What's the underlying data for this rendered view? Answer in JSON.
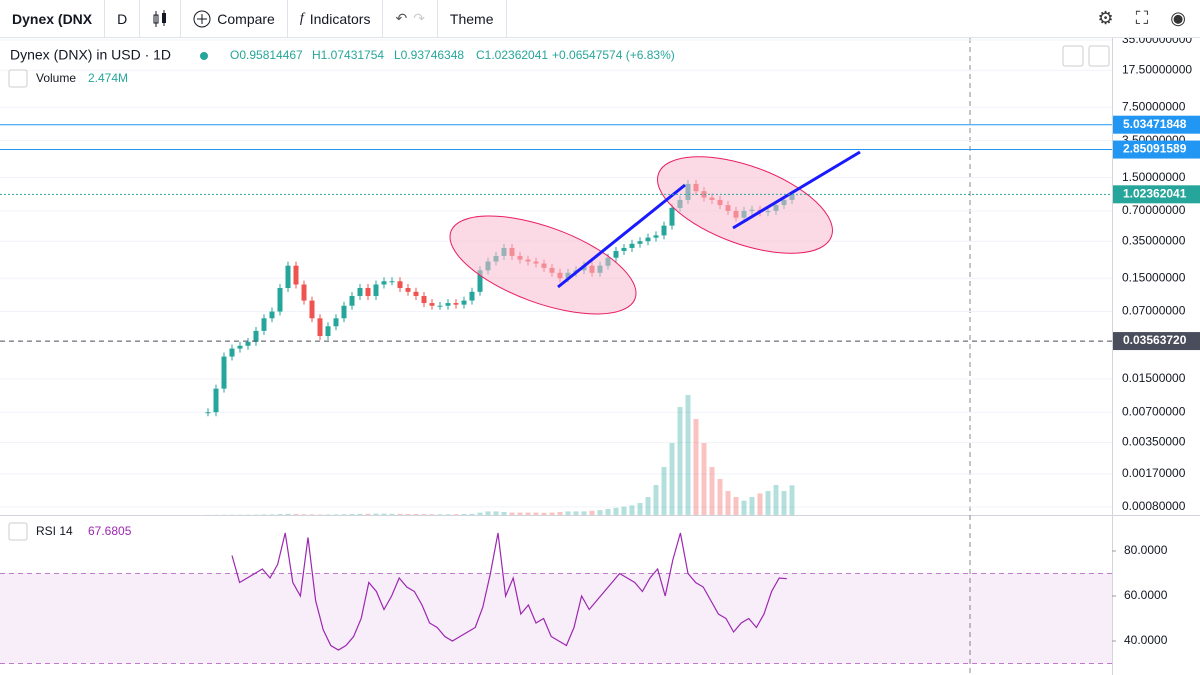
{
  "toolbar": {
    "symbol": "Dynex (DNX",
    "interval": "D",
    "compare": "Compare",
    "indicators": "Indicators",
    "theme": "Theme"
  },
  "legend": {
    "title": "Dynex (DNX) in USD · 1D",
    "open": "O0.95814467",
    "high": "H1.07431754",
    "low": "L0.93746348",
    "close": "C1.02362041",
    "change": "+0.06547574 (+6.83%)"
  },
  "volume_legend": {
    "name": "Volume",
    "value": "2.474M"
  },
  "chart": {
    "type": "candlestick",
    "log_scale": true,
    "grid": true,
    "ylim": [
      0.000666,
      36.6
    ],
    "yticks": [
      {
        "value": 35,
        "label": "35.00000000"
      },
      {
        "value": 17.5,
        "label": "17.50000000"
      },
      {
        "value": 7.5,
        "label": "7.50000000"
      },
      {
        "value": 3.5,
        "label": "3.50000000"
      },
      {
        "value": 1.5,
        "label": "1.50000000"
      },
      {
        "value": 0.7,
        "label": "0.70000000"
      },
      {
        "value": 0.35,
        "label": "0.35000000"
      },
      {
        "value": 0.15,
        "label": "0.15000000"
      },
      {
        "value": 0.07,
        "label": "0.07000000"
      },
      {
        "value": 0.015,
        "label": "0.01500000"
      },
      {
        "value": 0.007,
        "label": "0.00700000"
      },
      {
        "value": 0.0035,
        "label": "0.00350000"
      },
      {
        "value": 0.0017,
        "label": "0.00170000"
      },
      {
        "value": 0.0008,
        "label": "0.00080000"
      }
    ],
    "price_tags": [
      {
        "value": 5.03471848,
        "color": "#2196f3",
        "style": "solid"
      },
      {
        "value": 2.85091589,
        "color": "#2196f3",
        "style": "solid"
      },
      {
        "value": 1.02362041,
        "color": "#26a69a",
        "style": "dotted"
      },
      {
        "value": 0.0356372,
        "label": "0.03563720",
        "color": "#4a4e5c",
        "style": "dashed"
      }
    ],
    "up_color": "#26a69a",
    "down_color": "#ef5350",
    "close": [
      0.007,
      0.012,
      0.025,
      0.03,
      0.032,
      0.035,
      0.045,
      0.06,
      0.07,
      0.12,
      0.2,
      0.13,
      0.09,
      0.06,
      0.04,
      0.05,
      0.06,
      0.08,
      0.1,
      0.12,
      0.1,
      0.13,
      0.14,
      0.14,
      0.12,
      0.11,
      0.1,
      0.085,
      0.08,
      0.08,
      0.085,
      0.082,
      0.09,
      0.11,
      0.18,
      0.22,
      0.25,
      0.3,
      0.25,
      0.23,
      0.22,
      0.21,
      0.19,
      0.17,
      0.15,
      0.17,
      0.18,
      0.2,
      0.17,
      0.2,
      0.24,
      0.28,
      0.3,
      0.33,
      0.35,
      0.38,
      0.4,
      0.5,
      0.75,
      0.9,
      1.3,
      1.1,
      0.95,
      0.9,
      0.8,
      0.7,
      0.6,
      0.7,
      0.72,
      0.68,
      0.7,
      0.8,
      0.9,
      1.02362041
    ],
    "volume": [
      0.01,
      0.01,
      0.02,
      0.02,
      0.02,
      0.03,
      0.03,
      0.04,
      0.05,
      0.08,
      0.1,
      0.08,
      0.06,
      0.05,
      0.04,
      0.04,
      0.05,
      0.06,
      0.08,
      0.1,
      0.1,
      0.12,
      0.12,
      0.1,
      0.1,
      0.08,
      0.08,
      0.07,
      0.07,
      0.06,
      0.06,
      0.07,
      0.08,
      0.1,
      0.2,
      0.3,
      0.3,
      0.25,
      0.2,
      0.2,
      0.2,
      0.2,
      0.18,
      0.2,
      0.25,
      0.3,
      0.3,
      0.3,
      0.35,
      0.4,
      0.5,
      0.6,
      0.7,
      0.8,
      1.0,
      1.5,
      2.5,
      4.0,
      6.0,
      9.0,
      10.0,
      8.0,
      6.0,
      4.0,
      3.0,
      2.0,
      1.5,
      1.2,
      1.5,
      1.8,
      2.0,
      2.5,
      2.0,
      2.474
    ]
  },
  "rsi": {
    "name": "RSI 14",
    "color": "#9c27b0",
    "ylim": [
      24.9,
      95.1
    ],
    "band": [
      30,
      70
    ],
    "yticks": [
      {
        "value": 80,
        "label": "80.0000"
      },
      {
        "value": 60,
        "label": "60.0000"
      },
      {
        "value": 40,
        "label": "40.0000"
      }
    ],
    "values": [
      78,
      66,
      68,
      70,
      72,
      68,
      74,
      88,
      66,
      60,
      86,
      58,
      45,
      38,
      36,
      38,
      42,
      50,
      66,
      62,
      54,
      60,
      68,
      64,
      62,
      56,
      48,
      46,
      42,
      40,
      42,
      44,
      46,
      55,
      70,
      88,
      60,
      68,
      52,
      56,
      48,
      50,
      42,
      40,
      38,
      46,
      60,
      54,
      58,
      62,
      66,
      70,
      68,
      66,
      62,
      68,
      72,
      60,
      76,
      88,
      70,
      66,
      64,
      58,
      52,
      50,
      44,
      48,
      50,
      46,
      52,
      62,
      68,
      67.6805
    ]
  }
}
